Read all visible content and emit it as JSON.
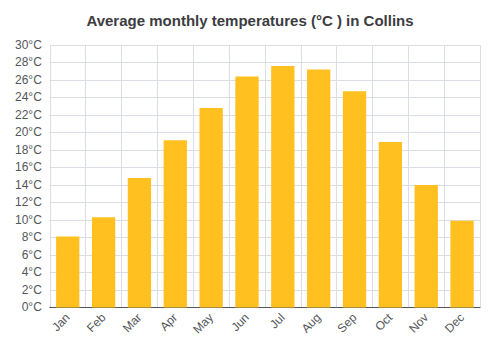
{
  "chart_data": {
    "type": "bar",
    "title": "Average monthly temperatures (°C ) in Collins",
    "categories": [
      "Jan",
      "Feb",
      "Mar",
      "Apr",
      "May",
      "Jun",
      "Jul",
      "Aug",
      "Sep",
      "Oct",
      "Nov",
      "Dec"
    ],
    "values": [
      8.1,
      10.3,
      14.8,
      19.1,
      22.8,
      26.4,
      27.6,
      27.2,
      24.7,
      18.9,
      14.0,
      9.9
    ],
    "color": "#FFC020",
    "ylim": [
      0,
      30
    ],
    "yticks": [
      {
        "value": 0,
        "label": "0°C"
      },
      {
        "value": 2,
        "label": "2°C"
      },
      {
        "value": 4,
        "label": "4°C"
      },
      {
        "value": 6,
        "label": "6°C"
      },
      {
        "value": 8,
        "label": "8°C"
      },
      {
        "value": 10,
        "label": "10°C"
      },
      {
        "value": 12,
        "label": "12°C"
      },
      {
        "value": 14,
        "label": "14°C"
      },
      {
        "value": 16,
        "label": "16°C"
      },
      {
        "value": 18,
        "label": "18°C"
      },
      {
        "value": 20,
        "label": "20°C"
      },
      {
        "value": 22,
        "label": "22°C"
      },
      {
        "value": 24,
        "label": "24°C"
      },
      {
        "value": 26,
        "label": "26°C"
      },
      {
        "value": 28,
        "label": "28°C"
      },
      {
        "value": 30,
        "label": "30°C"
      }
    ],
    "grid": true
  }
}
